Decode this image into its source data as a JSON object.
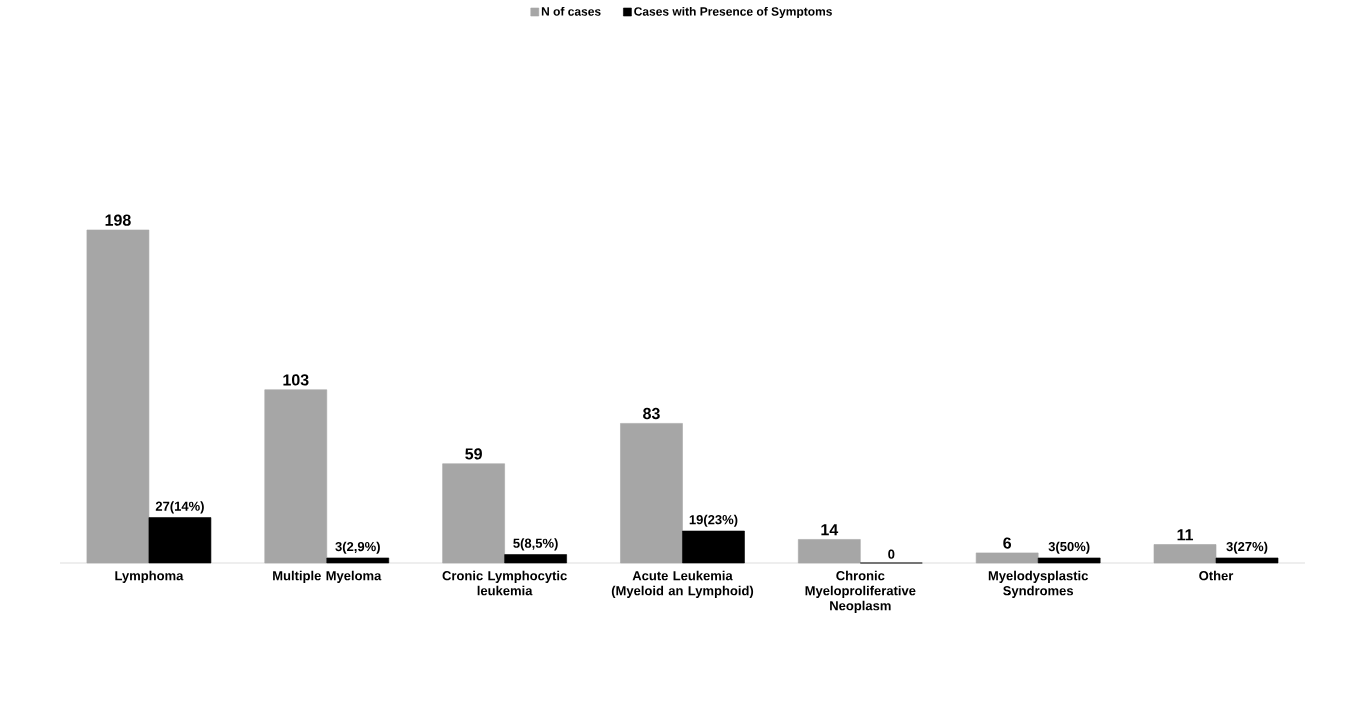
{
  "chart_data": {
    "type": "bar",
    "categories": [
      "Lymphoma",
      "Multiple Myeloma",
      "Cronic Lymphocytic leukemia",
      "Acute Leukemia (Myeloid an Lymphoid)",
      "Chronic Myeloproliferative Neoplasm",
      "Myelodysplastic Syndromes",
      "Other"
    ],
    "series": [
      {
        "name": "N of cases",
        "color": "#a6a6a6",
        "values": [
          198,
          103,
          59,
          83,
          14,
          6,
          11
        ],
        "value_labels": [
          "198",
          "103",
          "59",
          "83",
          "14",
          "6",
          "11"
        ]
      },
      {
        "name": "Cases with Presence of Symptoms",
        "color": "#000000",
        "values": [
          27,
          3,
          5,
          19,
          0,
          3,
          3
        ],
        "value_labels": [
          "27(14%)",
          "3(2,9%)",
          "5(8,5%)",
          "19(23%)",
          "0",
          "3(50%)",
          "3(27%)"
        ]
      }
    ],
    "legend": "top"
  }
}
